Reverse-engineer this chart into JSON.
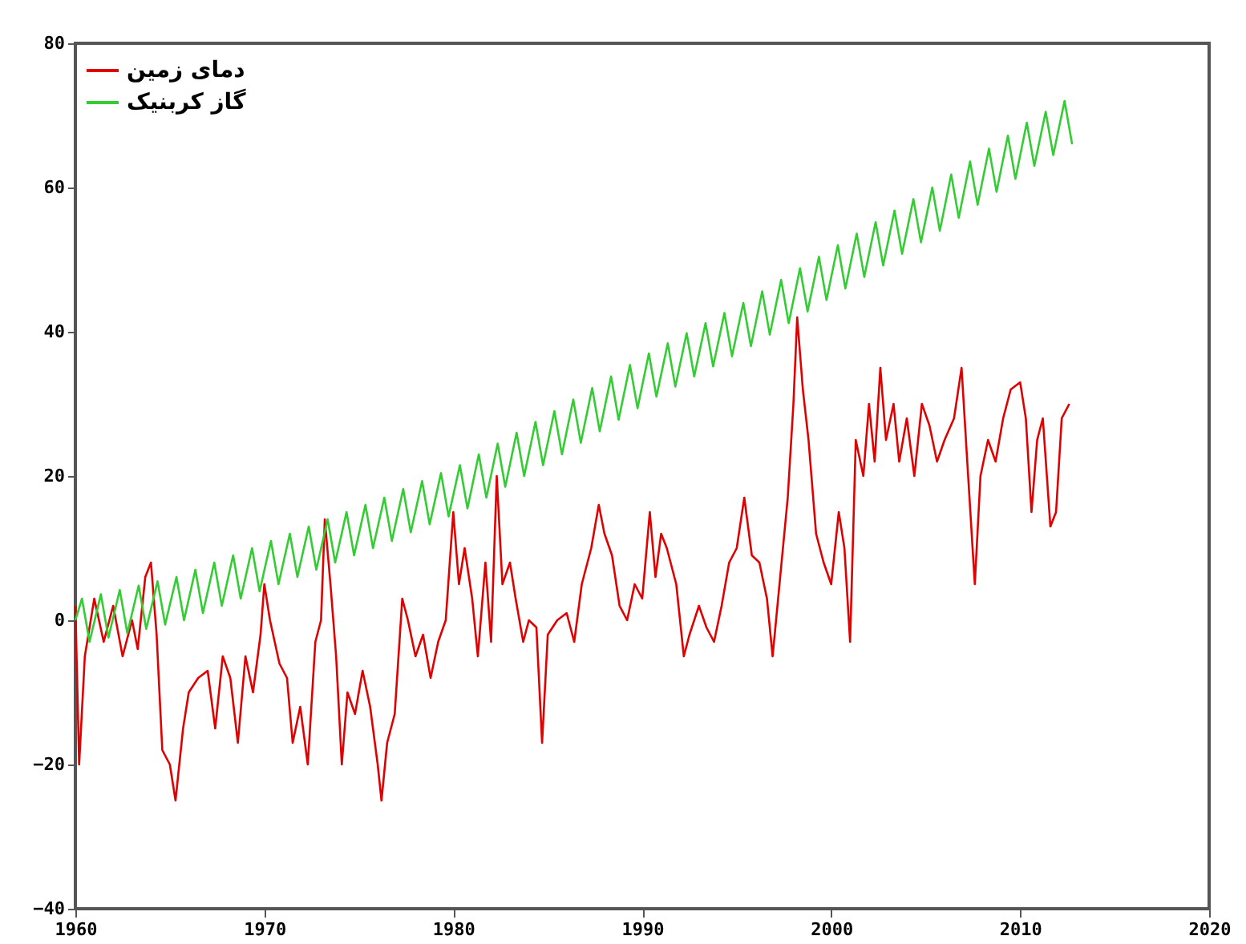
{
  "chart_data": {
    "type": "line",
    "xlim": [
      1960,
      2020
    ],
    "xticks": [
      1960,
      1970,
      1980,
      1990,
      2000,
      2010,
      2020
    ],
    "ylim": [
      -40,
      80
    ],
    "yticks": [
      -40,
      -20,
      0,
      20,
      40,
      60,
      80
    ],
    "grid": false,
    "legend": "top left",
    "series": [
      {
        "name": "دمای زمین",
        "color": "#e00000",
        "x": [
          1960.0,
          1960.2,
          1960.5,
          1961,
          1961.5,
          1962,
          1962.5,
          1963,
          1963.3,
          1963.7,
          1964,
          1964.3,
          1964.6,
          1965,
          1965.3,
          1965.7,
          1966,
          1966.5,
          1967,
          1967.4,
          1967.8,
          1968.2,
          1968.6,
          1969,
          1969.4,
          1969.8,
          1970,
          1970.3,
          1970.8,
          1971.2,
          1971.5,
          1971.9,
          1972.3,
          1972.7,
          1973.0,
          1973.2,
          1973.5,
          1973.8,
          1974.1,
          1974.4,
          1974.8,
          1975.2,
          1975.6,
          1976.0,
          1976.2,
          1976.5,
          1976.9,
          1977.3,
          1977.6,
          1978,
          1978.4,
          1978.8,
          1979.2,
          1979.6,
          1980,
          1980.3,
          1980.6,
          1981,
          1981.3,
          1981.7,
          1982,
          1982.3,
          1982.6,
          1983,
          1983.3,
          1983.7,
          1984,
          1984.4,
          1984.7,
          1985,
          1985.5,
          1986,
          1986.4,
          1986.8,
          1987.3,
          1987.7,
          1988,
          1988.4,
          1988.8,
          1989.2,
          1989.6,
          1990,
          1990.4,
          1990.7,
          1991,
          1991.3,
          1991.8,
          1992.2,
          1992.5,
          1993,
          1993.4,
          1993.8,
          1994.2,
          1994.6,
          1995,
          1995.4,
          1995.8,
          1996.2,
          1996.6,
          1996.9,
          1997.3,
          1997.7,
          1998,
          1998.2,
          1998.5,
          1998.8,
          1999.2,
          1999.6,
          2000,
          2000.4,
          2000.7,
          2001,
          2001.3,
          2001.7,
          2002,
          2002.3,
          2002.6,
          2002.9,
          2003.3,
          2003.6,
          2004,
          2004.4,
          2004.8,
          2005.2,
          2005.6,
          2006,
          2006.5,
          2006.9,
          2007.2,
          2007.6,
          2007.9,
          2008.3,
          2008.7,
          2009.1,
          2009.5,
          2010,
          2010.3,
          2010.6,
          2010.9,
          2011.2,
          2011.6,
          2011.9,
          2012.2,
          2012.6
        ],
        "values": [
          2,
          -20,
          -5,
          3,
          -3,
          2,
          -5,
          0,
          -4,
          6,
          8,
          -2,
          -18,
          -20,
          -25,
          -15,
          -10,
          -8,
          -7,
          -15,
          -5,
          -8,
          -17,
          -5,
          -10,
          -2,
          5,
          0,
          -6,
          -8,
          -17,
          -12,
          -20,
          -3,
          0,
          14,
          5,
          -5,
          -20,
          -10,
          -13,
          -7,
          -12,
          -20,
          -25,
          -17,
          -13,
          3,
          0,
          -5,
          -2,
          -8,
          -3,
          0,
          15,
          5,
          10,
          3,
          -5,
          8,
          -3,
          20,
          5,
          8,
          3,
          -3,
          0,
          -1,
          -17,
          -2,
          0,
          1,
          -3,
          5,
          10,
          16,
          12,
          9,
          2,
          0,
          5,
          3,
          15,
          6,
          12,
          10,
          5,
          -5,
          -2,
          2,
          -1,
          -3,
          2,
          8,
          10,
          17,
          9,
          8,
          3,
          -5,
          6,
          17,
          30,
          42,
          32,
          25,
          12,
          8,
          5,
          15,
          10,
          -3,
          25,
          20,
          30,
          22,
          35,
          25,
          30,
          22,
          28,
          20,
          30,
          27,
          22,
          25,
          28,
          35,
          22,
          5,
          20,
          25,
          22,
          28,
          32,
          33,
          28,
          15,
          25,
          28,
          13,
          15,
          28,
          30
        ]
      },
      {
        "name": "گاز کربنیک",
        "color": "#33cc33",
        "x": [
          1960.0,
          1960.35,
          1960.75,
          1961.35,
          1961.75,
          1962.35,
          1962.75,
          1963.35,
          1963.75,
          1964.35,
          1964.75,
          1965.35,
          1965.75,
          1966.35,
          1966.75,
          1967.35,
          1967.75,
          1968.35,
          1968.75,
          1969.35,
          1969.75,
          1970.35,
          1970.75,
          1971.35,
          1971.75,
          1972.35,
          1972.75,
          1973.35,
          1973.75,
          1974.35,
          1974.75,
          1975.35,
          1975.75,
          1976.35,
          1976.75,
          1977.35,
          1977.75,
          1978.35,
          1978.75,
          1979.35,
          1979.75,
          1980.35,
          1980.75,
          1981.35,
          1981.75,
          1982.35,
          1982.75,
          1983.35,
          1983.75,
          1984.35,
          1984.75,
          1985.35,
          1985.75,
          1986.35,
          1986.75,
          1987.35,
          1987.75,
          1988.35,
          1988.75,
          1989.35,
          1989.75,
          1990.35,
          1990.75,
          1991.35,
          1991.75,
          1992.35,
          1992.75,
          1993.35,
          1993.75,
          1994.35,
          1994.75,
          1995.35,
          1995.75,
          1996.35,
          1996.75,
          1997.35,
          1997.75,
          1998.35,
          1998.75,
          1999.35,
          1999.75,
          2000.35,
          2000.75,
          2001.35,
          2001.75,
          2002.35,
          2002.75,
          2003.35,
          2003.75,
          2004.35,
          2004.75,
          2005.35,
          2005.75,
          2006.35,
          2006.75,
          2007.35,
          2007.75,
          2008.35,
          2008.75,
          2009.35,
          2009.75,
          2010.35,
          2010.75,
          2011.35,
          2011.75,
          2012.35,
          2012.75
        ],
        "values": [
          0,
          3,
          -3,
          3.6,
          -2.4,
          4.2,
          -1.8,
          4.8,
          -1.2,
          5.4,
          -0.6,
          6,
          0,
          7,
          1,
          8,
          2,
          9,
          3,
          10,
          4,
          11,
          5,
          12,
          6,
          13,
          7,
          14,
          8,
          15,
          9,
          16,
          10,
          17,
          11,
          18.2,
          12.2,
          19.3,
          13.3,
          20.4,
          14.4,
          21.5,
          15.5,
          23,
          17,
          24.5,
          18.5,
          26,
          20,
          27.5,
          21.5,
          29,
          23,
          30.6,
          24.6,
          32.2,
          26.2,
          33.8,
          27.8,
          35.4,
          29.4,
          37,
          31,
          38.4,
          32.4,
          39.8,
          33.8,
          41.2,
          35.2,
          42.6,
          36.6,
          44,
          38,
          45.6,
          39.6,
          47.2,
          41.2,
          48.8,
          42.8,
          50.4,
          44.4,
          52,
          46,
          53.6,
          47.6,
          55.2,
          49.2,
          56.8,
          50.8,
          58.4,
          52.4,
          60,
          54,
          61.8,
          55.8,
          63.6,
          57.6,
          65.4,
          59.4,
          67.2,
          61.2,
          69,
          63,
          70.5,
          64.5,
          72,
          66
        ]
      }
    ]
  }
}
